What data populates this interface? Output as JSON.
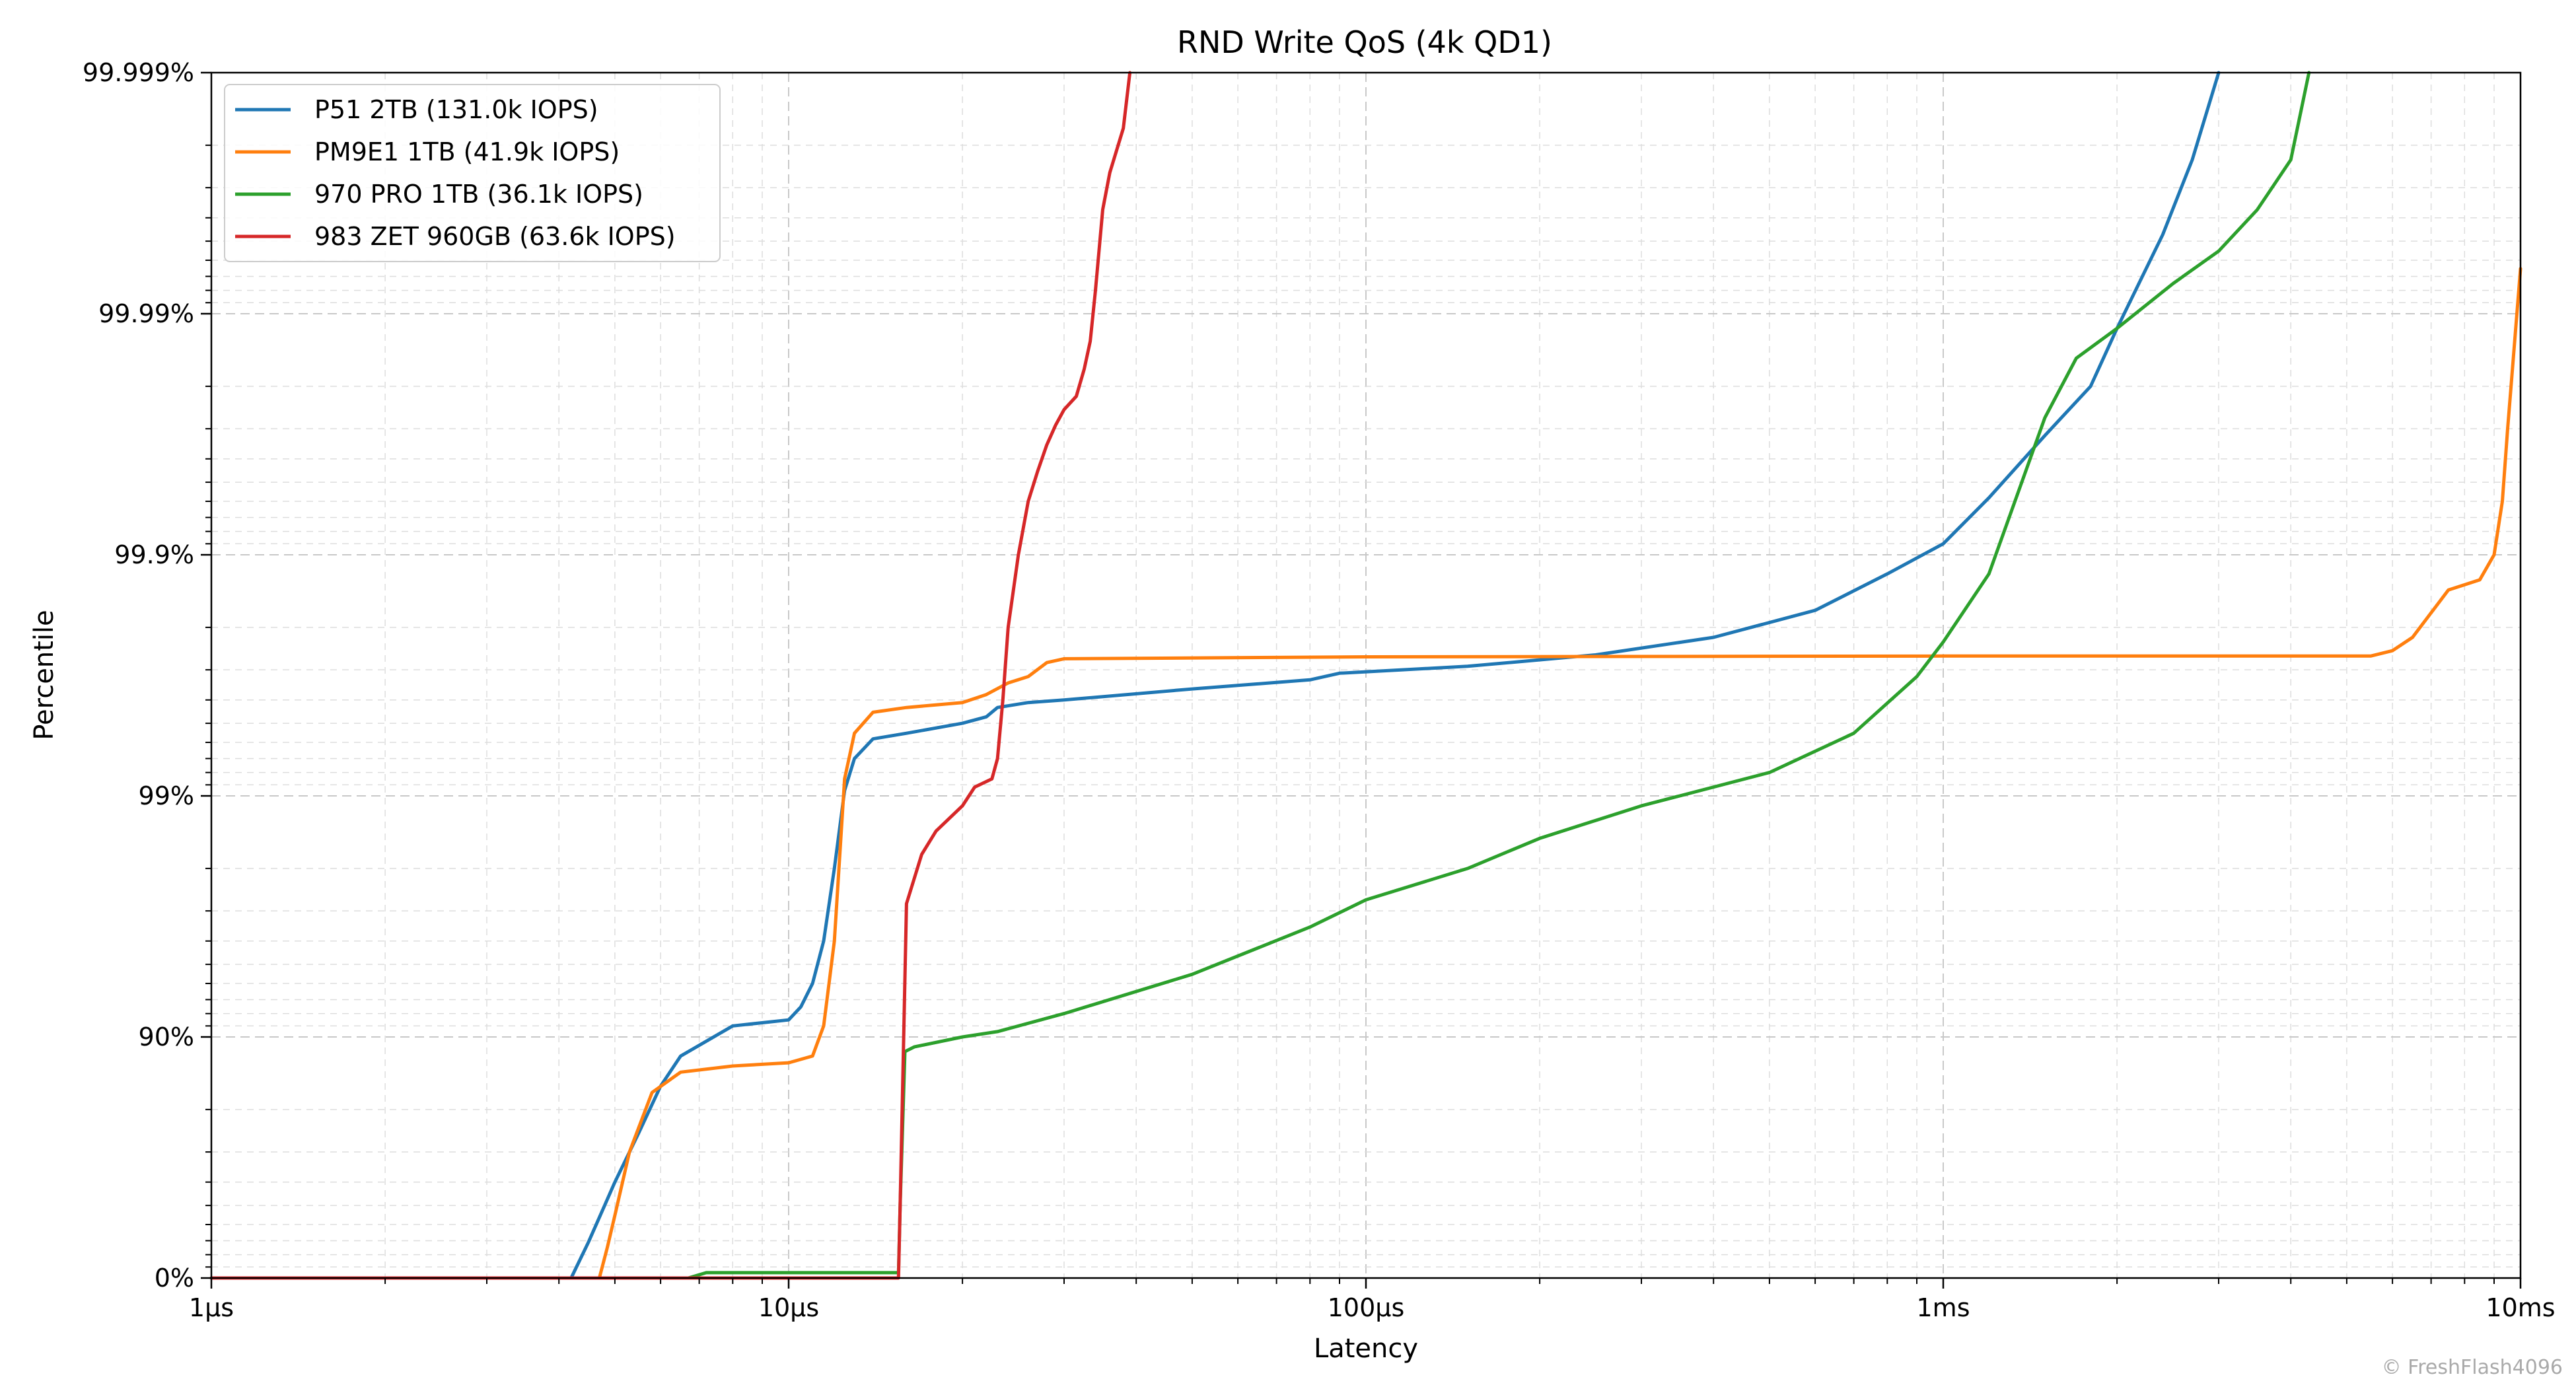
{
  "chart_data": {
    "type": "line",
    "title": "RND Write QoS (4k QD1)",
    "xlabel": "Latency",
    "ylabel": "Percentile",
    "xscale": "log",
    "xlim": [
      1,
      10000
    ],
    "x_ticks": [
      {
        "value": 1,
        "label": "1µs"
      },
      {
        "value": 10,
        "label": "10µs"
      },
      {
        "value": 100,
        "label": "100µs"
      },
      {
        "value": 1000,
        "label": "1ms"
      },
      {
        "value": 10000,
        "label": "10ms"
      }
    ],
    "yscale": "nines",
    "ylim": [
      0,
      99.999
    ],
    "y_ticks": [
      {
        "value": 0,
        "label": "0%"
      },
      {
        "value": 90,
        "label": "90%"
      },
      {
        "value": 99,
        "label": "99%"
      },
      {
        "value": 99.9,
        "label": "99.9%"
      },
      {
        "value": 99.99,
        "label": "99.99%"
      },
      {
        "value": 99.999,
        "label": "99.999%"
      }
    ],
    "grid": true,
    "legend_position": "top-left",
    "series": [
      {
        "name": "P51 2TB (131.0k IOPS)",
        "color": "#1f77b4",
        "x": [
          1,
          4.2,
          4.5,
          4.8,
          5.0,
          5.5,
          6.0,
          6.5,
          8.0,
          10.0,
          10.5,
          11.0,
          11.5,
          12.0,
          12.5,
          13.0,
          14.0,
          16.0,
          20.0,
          22.0,
          23.0,
          26.0,
          30.0,
          50.0,
          80.0,
          90.0,
          150.0,
          250.0,
          400.0,
          600.0,
          800.0,
          1000.0,
          1200.0,
          1500.0,
          1800.0,
          2000.0,
          2400.0,
          2700.0,
          3000.0
        ],
        "y": [
          0,
          0,
          29,
          50,
          60,
          75,
          84,
          88,
          91,
          91.5,
          92.5,
          94,
          96,
          98,
          99.05,
          99.3,
          99.42,
          99.45,
          99.5,
          99.53,
          99.57,
          99.59,
          99.6,
          99.64,
          99.67,
          99.69,
          99.71,
          99.74,
          99.78,
          99.83,
          99.88,
          99.91,
          99.942,
          99.968,
          99.98,
          99.9885,
          99.9953,
          99.9977,
          99.999
        ]
      },
      {
        "name": "PM9E1 1TB (41.9k IOPS)",
        "color": "#ff7f0e",
        "x": [
          1,
          4.7,
          4.85,
          5.0,
          5.3,
          5.8,
          6.5,
          8.0,
          10.0,
          11.0,
          11.5,
          12.0,
          12.5,
          13.0,
          14.0,
          16.0,
          20.0,
          22.0,
          24.0,
          26.0,
          28.0,
          30.0,
          100.0,
          1000.0,
          3000.0,
          5500.0,
          6000.0,
          6500.0,
          7500.0,
          8500.0,
          9000.0,
          9300.0,
          9500.0,
          10000.0
        ],
        "y": [
          0,
          0,
          25,
          45,
          70,
          83,
          86,
          86.8,
          87.2,
          88,
          91,
          96,
          99.15,
          99.45,
          99.55,
          99.57,
          99.59,
          99.62,
          99.66,
          99.68,
          99.72,
          99.73,
          99.735,
          99.737,
          99.737,
          99.737,
          99.75,
          99.78,
          99.86,
          99.873,
          99.9,
          99.94,
          99.97,
          99.9935
        ]
      },
      {
        "name": "970 PRO 1TB (36.1k IOPS)",
        "color": "#2ca02c",
        "x": [
          1,
          6.7,
          7.2,
          10.0,
          15.5,
          15.6,
          15.9,
          16.5,
          20.0,
          23.0,
          30.0,
          50.0,
          80.0,
          100.0,
          150.0,
          200.0,
          300.0,
          500.0,
          700.0,
          900.0,
          1000.0,
          1200.0,
          1500.0,
          1700.0,
          2000.0,
          2500.0,
          3000.0,
          3500.0,
          4000.0,
          4300.0
        ],
        "y": [
          0,
          0,
          5,
          5,
          5,
          50,
          88.5,
          89,
          90,
          90.5,
          92,
          94.5,
          96.5,
          97.3,
          98.0,
          98.5,
          98.9,
          99.2,
          99.45,
          99.68,
          99.77,
          99.88,
          99.973,
          99.9847,
          99.9885,
          99.9925,
          99.9945,
          99.9963,
          99.9977,
          99.999
        ]
      },
      {
        "name": "983 ZET 960GB (63.6k IOPS)",
        "color": "#d62728",
        "x": [
          1,
          15.5,
          15.6,
          16.0,
          17.0,
          18.0,
          20.0,
          21.0,
          22.5,
          23.0,
          23.5,
          24.0,
          25.0,
          26.0,
          27.0,
          28.0,
          29.0,
          30.0,
          31.5,
          32.5,
          33.3,
          34.0,
          35.0,
          36.0,
          38.0,
          39.0
        ],
        "y": [
          0,
          0,
          50,
          97.2,
          98.25,
          98.6,
          98.9,
          99.08,
          99.15,
          99.3,
          99.6,
          99.8,
          99.9,
          99.94,
          99.955,
          99.965,
          99.971,
          99.975,
          99.978,
          99.983,
          99.987,
          99.992,
          99.9963,
          99.9974,
          99.9983,
          99.999
        ]
      }
    ]
  },
  "copyright": "© FreshFlash4096"
}
